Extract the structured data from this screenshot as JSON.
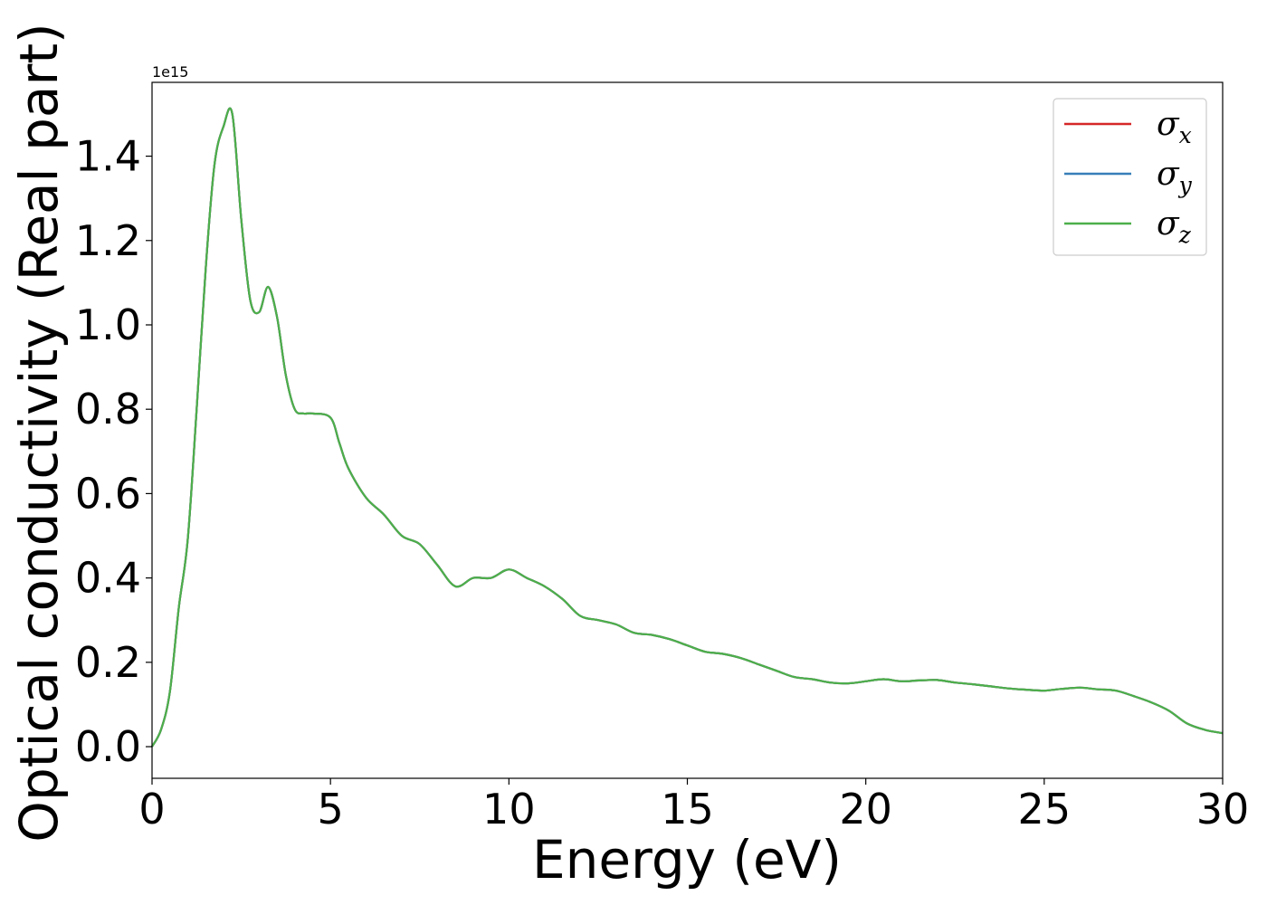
{
  "chart_data": {
    "type": "line",
    "xlabel": "Energy (eV)",
    "ylabel": "Optical conductivity (Real part)",
    "y_offset_label": "1e15",
    "xlim": [
      0,
      30
    ],
    "ylim": [
      -0.075,
      1.575
    ],
    "x_ticks": [
      0,
      5,
      10,
      15,
      20,
      25,
      30
    ],
    "x_tick_labels": [
      "0",
      "5",
      "10",
      "15",
      "20",
      "25",
      "30"
    ],
    "y_ticks": [
      0.0,
      0.2,
      0.4,
      0.6,
      0.8,
      1.0,
      1.2,
      1.4
    ],
    "y_tick_labels": [
      "0.0",
      "0.2",
      "0.4",
      "0.6",
      "0.8",
      "1.0",
      "1.2",
      "1.4"
    ],
    "grid": false,
    "legend_position": "top-right",
    "x": [
      0,
      0.25,
      0.5,
      0.75,
      1,
      1.25,
      1.5,
      1.75,
      2,
      2.25,
      2.5,
      2.75,
      3,
      3.25,
      3.5,
      3.75,
      4,
      4.25,
      4.5,
      5,
      5.25,
      5.5,
      6,
      6.5,
      7,
      7.5,
      8,
      8.5,
      9,
      9.5,
      10,
      10.5,
      11,
      11.5,
      12,
      12.5,
      13,
      13.5,
      14,
      14.5,
      15,
      15.5,
      16,
      16.5,
      17,
      17.5,
      18,
      18.5,
      19,
      19.5,
      20,
      20.5,
      21,
      21.5,
      22,
      22.5,
      23,
      23.5,
      24,
      24.5,
      25,
      25.5,
      26,
      26.5,
      27,
      27.5,
      28,
      28.5,
      29,
      29.5,
      30
    ],
    "series": [
      {
        "name": "σx",
        "base": "σ",
        "sub": "x",
        "color": "#d62728",
        "values": [
          0.0,
          0.04,
          0.13,
          0.33,
          0.49,
          0.8,
          1.13,
          1.38,
          1.47,
          1.5,
          1.25,
          1.06,
          1.03,
          1.09,
          1.02,
          0.88,
          0.8,
          0.79,
          0.79,
          0.78,
          0.72,
          0.66,
          0.59,
          0.55,
          0.5,
          0.48,
          0.43,
          0.38,
          0.4,
          0.4,
          0.42,
          0.4,
          0.38,
          0.35,
          0.31,
          0.3,
          0.29,
          0.27,
          0.265,
          0.255,
          0.24,
          0.225,
          0.22,
          0.21,
          0.195,
          0.18,
          0.165,
          0.16,
          0.152,
          0.15,
          0.155,
          0.16,
          0.155,
          0.157,
          0.158,
          0.152,
          0.148,
          0.143,
          0.138,
          0.135,
          0.133,
          0.137,
          0.14,
          0.136,
          0.133,
          0.12,
          0.105,
          0.085,
          0.055,
          0.04,
          0.032
        ]
      },
      {
        "name": "σy",
        "base": "σ",
        "sub": "y",
        "color": "#377eb8",
        "values": [
          0.0,
          0.04,
          0.13,
          0.33,
          0.49,
          0.8,
          1.13,
          1.38,
          1.47,
          1.5,
          1.25,
          1.06,
          1.03,
          1.09,
          1.02,
          0.88,
          0.8,
          0.79,
          0.79,
          0.78,
          0.72,
          0.66,
          0.59,
          0.55,
          0.5,
          0.48,
          0.43,
          0.38,
          0.4,
          0.4,
          0.42,
          0.4,
          0.38,
          0.35,
          0.31,
          0.3,
          0.29,
          0.27,
          0.265,
          0.255,
          0.24,
          0.225,
          0.22,
          0.21,
          0.195,
          0.18,
          0.165,
          0.16,
          0.152,
          0.15,
          0.155,
          0.16,
          0.155,
          0.157,
          0.158,
          0.152,
          0.148,
          0.143,
          0.138,
          0.135,
          0.133,
          0.137,
          0.14,
          0.136,
          0.133,
          0.12,
          0.105,
          0.085,
          0.055,
          0.04,
          0.032
        ]
      },
      {
        "name": "σz",
        "base": "σ",
        "sub": "z",
        "color": "#4daf4a",
        "values": [
          0.0,
          0.04,
          0.13,
          0.33,
          0.49,
          0.8,
          1.13,
          1.38,
          1.47,
          1.5,
          1.25,
          1.06,
          1.03,
          1.09,
          1.02,
          0.88,
          0.8,
          0.79,
          0.79,
          0.78,
          0.72,
          0.66,
          0.59,
          0.55,
          0.5,
          0.48,
          0.43,
          0.38,
          0.4,
          0.4,
          0.42,
          0.4,
          0.38,
          0.35,
          0.31,
          0.3,
          0.29,
          0.27,
          0.265,
          0.255,
          0.24,
          0.225,
          0.22,
          0.21,
          0.195,
          0.18,
          0.165,
          0.16,
          0.152,
          0.15,
          0.155,
          0.16,
          0.155,
          0.157,
          0.158,
          0.152,
          0.148,
          0.143,
          0.138,
          0.135,
          0.133,
          0.137,
          0.14,
          0.136,
          0.133,
          0.12,
          0.105,
          0.085,
          0.055,
          0.04,
          0.032
        ]
      }
    ]
  }
}
